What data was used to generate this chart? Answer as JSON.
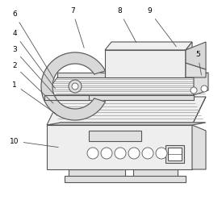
{
  "background_color": "#ffffff",
  "line_color": "#555555",
  "line_width": 0.8,
  "label_color": "#000000",
  "label_fontsize": 6.5,
  "stripe_color": "#aaaaaa",
  "fill_light": "#f0f0f0",
  "fill_mid": "#e0e0e0",
  "fill_dark": "#cccccc"
}
